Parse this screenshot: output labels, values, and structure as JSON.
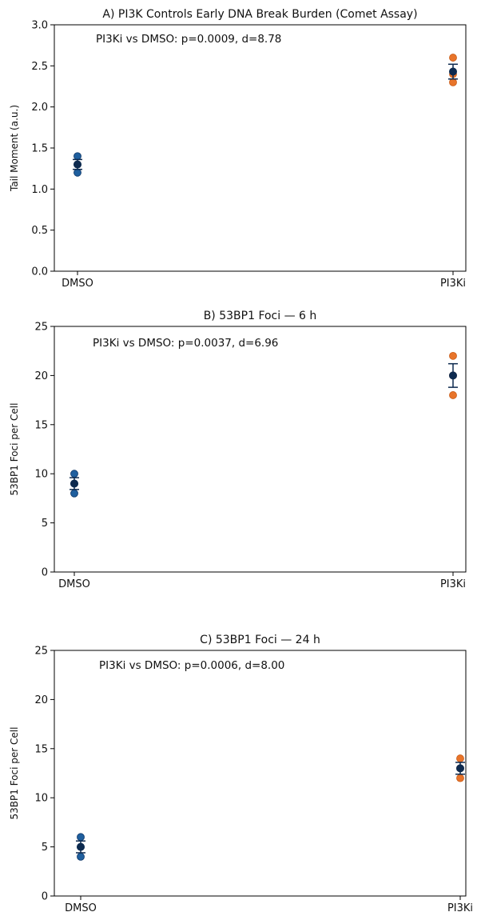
{
  "colors": {
    "dmso_point": "#1f5f9e",
    "pi3ki_point": "#e8742a",
    "mean_marker": "#0d2a4f",
    "errorbar": "#0d2a4f",
    "point_edge": "#0b3466"
  },
  "chart_data": [
    {
      "type": "scatter",
      "title": "A) PI3K Controls Early DNA Break Burden (Comet Assay)",
      "xlabel": "",
      "ylabel": "Tail Moment (a.u.)",
      "categories": [
        "DMSO",
        "PI3Ki"
      ],
      "ylim": [
        0,
        3.0
      ],
      "yticks": [
        0.0,
        0.5,
        1.0,
        1.5,
        2.0,
        2.5,
        3.0
      ],
      "ytick_labels": [
        "0.0",
        "0.5",
        "1.0",
        "1.5",
        "2.0",
        "2.5",
        "3.0"
      ],
      "points": [
        [
          1.2,
          1.3,
          1.4
        ],
        [
          2.3,
          2.4,
          2.6
        ]
      ],
      "means": [
        1.3,
        2.43
      ],
      "errors": [
        0.06,
        0.09
      ],
      "annotation": "PI3Ki vs DMSO: p=0.0009, d=8.78",
      "grid": false
    },
    {
      "type": "scatter",
      "title": "B) 53BP1 Foci — 6 h",
      "xlabel": "",
      "ylabel": "53BP1 Foci per Cell",
      "categories": [
        "DMSO",
        "PI3Ki"
      ],
      "ylim": [
        0,
        25
      ],
      "yticks": [
        0,
        5,
        10,
        15,
        20,
        25
      ],
      "ytick_labels": [
        "0",
        "5",
        "10",
        "15",
        "20",
        "25"
      ],
      "points": [
        [
          8,
          9,
          10
        ],
        [
          18,
          20,
          22
        ]
      ],
      "means": [
        9,
        20
      ],
      "errors": [
        0.6,
        1.2
      ],
      "annotation": "PI3Ki vs DMSO: p=0.0037, d=6.96",
      "grid": false
    },
    {
      "type": "scatter",
      "title": "C) 53BP1 Foci — 24 h",
      "xlabel": "",
      "ylabel": "53BP1 Foci per Cell",
      "categories": [
        "DMSO",
        "PI3Ki"
      ],
      "ylim": [
        0,
        25
      ],
      "yticks": [
        0,
        5,
        10,
        15,
        20,
        25
      ],
      "ytick_labels": [
        "0",
        "5",
        "10",
        "15",
        "20",
        "25"
      ],
      "points": [
        [
          4,
          5,
          6
        ],
        [
          12,
          13,
          14
        ]
      ],
      "means": [
        5,
        13
      ],
      "errors": [
        0.6,
        0.6
      ],
      "annotation": "PI3Ki vs DMSO: p=0.0006, d=8.00",
      "grid": false
    }
  ]
}
